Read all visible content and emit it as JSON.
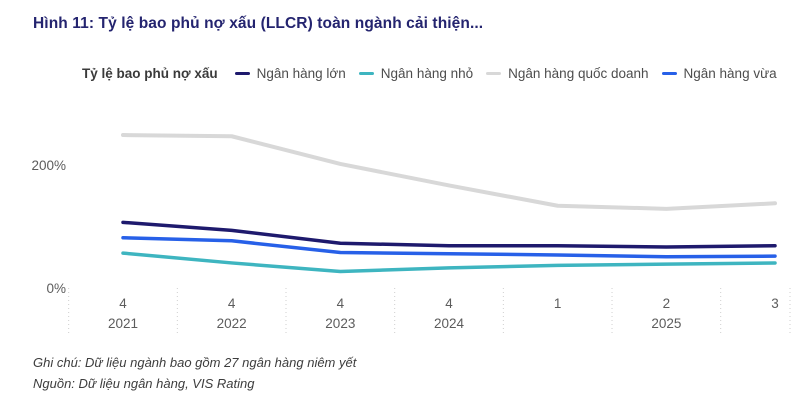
{
  "title": "Hình 11: Tỷ lệ bao phủ nợ xấu (LLCR) toàn ngành cải thiện...",
  "notes": [
    "Ghi chú: Dữ liệu ngành bao gồm 27 ngân hàng niêm yết",
    "Nguồn: Dữ liệu ngân hàng, VIS Rating"
  ],
  "colors": {
    "title_navy": "#24246f",
    "axis_text": "#5c5c5c",
    "tick_line": "#cfcfcf",
    "note_text": "#3d3d3d"
  },
  "chart_data": {
    "type": "line",
    "title": "Tỷ lệ bao phủ nợ xấu",
    "unit": "%",
    "x": [
      {
        "quarter": "4",
        "year": "2021"
      },
      {
        "quarter": "4",
        "year": "2022"
      },
      {
        "quarter": "4",
        "year": "2023"
      },
      {
        "quarter": "4",
        "year": "2024"
      },
      {
        "quarter": "1",
        "year": ""
      },
      {
        "quarter": "2",
        "year": "2025"
      },
      {
        "quarter": "3",
        "year": ""
      }
    ],
    "series": [
      {
        "name": "Ngân hàng lớn",
        "color": "#1e1a6d",
        "values": [
          110,
          97,
          76,
          72,
          72,
          70,
          72
        ]
      },
      {
        "name": "Ngân hàng nhỏ",
        "color": "#3eb5c0",
        "values": [
          60,
          44,
          30,
          36,
          40,
          42,
          44
        ]
      },
      {
        "name": "Ngân hàng quốc doanh",
        "color": "#d8d8d8",
        "values": [
          252,
          250,
          205,
          170,
          137,
          132,
          141
        ]
      },
      {
        "name": "Ngân hàng vừa",
        "color": "#2760e8",
        "values": [
          85,
          80,
          61,
          59,
          57,
          54,
          55
        ]
      }
    ],
    "ylim": [
      0,
      260
    ],
    "yticks": [
      {
        "value": 200,
        "label": "200%"
      },
      {
        "value": 0,
        "label": "0%"
      }
    ],
    "grid": "dotted-x-ticks",
    "legend_position": "top"
  }
}
